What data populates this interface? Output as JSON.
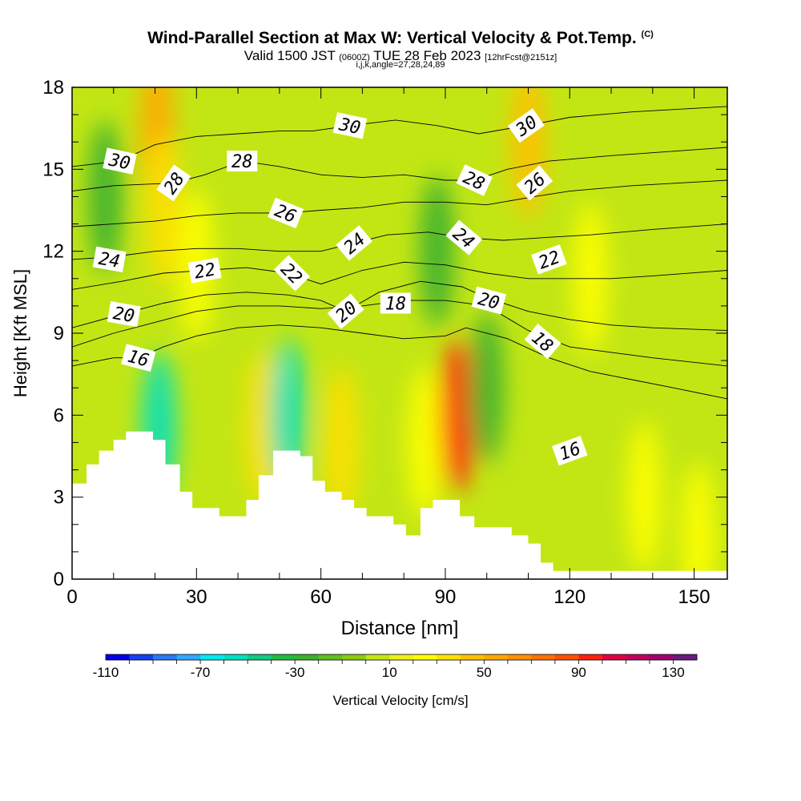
{
  "title": {
    "main": "Wind-Parallel Section at Max W: Vertical Velocity & Pot.Temp.",
    "copyright": "(C)",
    "valid_prefix": "Valid 1500 JST",
    "valid_zulu": "(0600Z)",
    "valid_date": "TUE 28 Feb 2023",
    "forecast": "[12hrFcst@2151z]",
    "indices": "i,j,k,angle=27,28,24,89"
  },
  "chart_data": {
    "type": "heatmap",
    "xlabel": "Distance [nm]",
    "ylabel": "Height [Kft MSL]",
    "x_ticks": [
      0,
      30,
      60,
      90,
      120,
      150
    ],
    "y_ticks": [
      0,
      3,
      6,
      9,
      12,
      15,
      18
    ],
    "xlim": [
      0,
      158
    ],
    "ylim": [
      0,
      18
    ],
    "grid": false,
    "terrain_kft": [
      [
        0,
        3.5
      ],
      [
        3.5,
        4.2
      ],
      [
        6.5,
        4.7
      ],
      [
        10,
        5.1
      ],
      [
        13,
        5.4
      ],
      [
        19.5,
        5.1
      ],
      [
        22.5,
        4.2
      ],
      [
        26,
        3.2
      ],
      [
        29,
        2.6
      ],
      [
        35.5,
        2.3
      ],
      [
        42,
        2.9
      ],
      [
        45,
        3.8
      ],
      [
        48.5,
        4.7
      ],
      [
        55,
        4.5
      ],
      [
        58,
        3.6
      ],
      [
        61,
        3.2
      ],
      [
        65,
        2.9
      ],
      [
        68,
        2.6
      ],
      [
        71,
        2.3
      ],
      [
        77.5,
        2.0
      ],
      [
        80.5,
        1.6
      ],
      [
        84,
        2.6
      ],
      [
        87,
        2.9
      ],
      [
        93.5,
        2.3
      ],
      [
        97,
        1.9
      ],
      [
        106,
        1.6
      ],
      [
        110,
        1.3
      ],
      [
        113,
        0.6
      ],
      [
        116,
        0.3
      ],
      [
        118,
        0.3
      ],
      [
        158,
        0.3
      ]
    ],
    "colorbar": {
      "label": "Vertical Velocity [cm/s]",
      "tick_labels": [
        "-110",
        "-70",
        "-30",
        "10",
        "50",
        "90",
        "130"
      ],
      "levels": [
        -110,
        -100,
        -90,
        -80,
        -70,
        -60,
        -50,
        -40,
        -30,
        -20,
        -10,
        0,
        10,
        20,
        30,
        40,
        50,
        60,
        70,
        80,
        90,
        100,
        110,
        120,
        130,
        140
      ],
      "colors": [
        "#0000e8",
        "#1440f0",
        "#2a78f4",
        "#30a8ff",
        "#00e8f0",
        "#00e0c0",
        "#10cc80",
        "#22bb40",
        "#3cb030",
        "#60c020",
        "#8ccc10",
        "#c2e614",
        "#eef018",
        "#ffff00",
        "#ffe000",
        "#ffc000",
        "#ffa800",
        "#ff9000",
        "#ff7000",
        "#ff5000",
        "#ff2010",
        "#e00040",
        "#c00060",
        "#a00070",
        "#6a1a80"
      ]
    },
    "velocity_features": [
      {
        "x": 20.5,
        "y": 16.5,
        "w_cm_s": 50
      },
      {
        "x": 22,
        "y": 13.5,
        "w_cm_s": 35
      },
      {
        "x": 30,
        "y": 11.5,
        "w_cm_s": 20
      },
      {
        "x": 46,
        "y": 5.5,
        "w_cm_s": 30
      },
      {
        "x": 52,
        "y": 6,
        "w_cm_s": -60
      },
      {
        "x": 65,
        "y": 5,
        "w_cm_s": 30
      },
      {
        "x": 85,
        "y": 5,
        "w_cm_s": 20
      },
      {
        "x": 93,
        "y": 6,
        "w_cm_s": 95
      },
      {
        "x": 110,
        "y": 16,
        "w_cm_s": 40
      },
      {
        "x": 100,
        "y": 7,
        "w_cm_s": -30
      },
      {
        "x": 125,
        "y": 11,
        "w_cm_s": 20
      },
      {
        "x": 138,
        "y": 3,
        "w_cm_s": 20
      },
      {
        "x": 151,
        "y": 1.5,
        "w_cm_s": 20
      },
      {
        "x": 8,
        "y": 14,
        "w_cm_s": -30
      },
      {
        "x": 21,
        "y": 5.5,
        "w_cm_s": -60
      },
      {
        "x": 88,
        "y": 12,
        "w_cm_s": -30
      }
    ],
    "contour_labels": [
      {
        "text": "30",
        "x": 11.5,
        "y": 15.3,
        "rot": 12
      },
      {
        "text": "28",
        "x": 24.5,
        "y": 14.5,
        "rot": -55
      },
      {
        "text": "28",
        "x": 41,
        "y": 15.3,
        "rot": 0
      },
      {
        "text": "30",
        "x": 67,
        "y": 16.6,
        "rot": 12
      },
      {
        "text": "26",
        "x": 51.5,
        "y": 13.4,
        "rot": 22
      },
      {
        "text": "24",
        "x": 9,
        "y": 11.7,
        "rot": 10
      },
      {
        "text": "22",
        "x": 32,
        "y": 11.3,
        "rot": -10
      },
      {
        "text": "22",
        "x": 53,
        "y": 11.2,
        "rot": 45
      },
      {
        "text": "24",
        "x": 68,
        "y": 12.3,
        "rot": -40
      },
      {
        "text": "20",
        "x": 12.5,
        "y": 9.7,
        "rot": 10
      },
      {
        "text": "20",
        "x": 66,
        "y": 9.8,
        "rot": -40
      },
      {
        "text": "18",
        "x": 78,
        "y": 10.1,
        "rot": 0
      },
      {
        "text": "16",
        "x": 16,
        "y": 8.1,
        "rot": 15
      },
      {
        "text": "28",
        "x": 97,
        "y": 14.6,
        "rot": 25
      },
      {
        "text": "30",
        "x": 109.5,
        "y": 16.6,
        "rot": -35
      },
      {
        "text": "26",
        "x": 111.5,
        "y": 14.5,
        "rot": -40
      },
      {
        "text": "24",
        "x": 94.5,
        "y": 12.5,
        "rot": 40
      },
      {
        "text": "22",
        "x": 115,
        "y": 11.7,
        "rot": -20
      },
      {
        "text": "20",
        "x": 100.5,
        "y": 10.2,
        "rot": 15
      },
      {
        "text": "18",
        "x": 113.5,
        "y": 8.7,
        "rot": 40
      },
      {
        "text": "16",
        "x": 120,
        "y": 4.7,
        "rot": -20
      }
    ],
    "isentropes": [
      {
        "theta": 16,
        "points": [
          [
            0,
            7.8
          ],
          [
            10,
            8.1
          ],
          [
            16,
            8.1
          ],
          [
            22,
            8.5
          ],
          [
            30,
            8.9
          ],
          [
            40,
            9.2
          ],
          [
            50,
            9.3
          ],
          [
            60,
            9.2
          ],
          [
            70,
            9.0
          ],
          [
            80,
            8.8
          ],
          [
            90,
            8.9
          ],
          [
            95,
            9.2
          ],
          [
            105,
            8.8
          ],
          [
            115,
            8.1
          ],
          [
            125,
            7.6
          ],
          [
            135,
            7.3
          ],
          [
            145,
            7.0
          ],
          [
            158,
            6.6
          ]
        ]
      },
      {
        "theta": 18,
        "points": [
          [
            0,
            8.5
          ],
          [
            10,
            9.0
          ],
          [
            20,
            9.4
          ],
          [
            30,
            9.8
          ],
          [
            40,
            10.0
          ],
          [
            50,
            10.0
          ],
          [
            60,
            9.9
          ],
          [
            70,
            10.0
          ],
          [
            80,
            10.2
          ],
          [
            90,
            10.2
          ],
          [
            100,
            10.0
          ],
          [
            110,
            9.1
          ],
          [
            120,
            8.5
          ],
          [
            130,
            8.3
          ],
          [
            140,
            8.1
          ],
          [
            158,
            7.8
          ]
        ]
      },
      {
        "theta": 20,
        "points": [
          [
            0,
            9.2
          ],
          [
            12,
            9.7
          ],
          [
            22,
            10.1
          ],
          [
            32,
            10.4
          ],
          [
            42,
            10.5
          ],
          [
            52,
            10.4
          ],
          [
            60,
            10.2
          ],
          [
            66,
            9.8
          ],
          [
            74,
            10.5
          ],
          [
            84,
            10.9
          ],
          [
            94,
            10.7
          ],
          [
            100,
            10.3
          ],
          [
            110,
            9.8
          ],
          [
            120,
            9.5
          ],
          [
            130,
            9.3
          ],
          [
            140,
            9.2
          ],
          [
            158,
            9.1
          ]
        ]
      },
      {
        "theta": 22,
        "points": [
          [
            0,
            10.6
          ],
          [
            12,
            10.9
          ],
          [
            22,
            11.2
          ],
          [
            32,
            11.3
          ],
          [
            42,
            11.4
          ],
          [
            52,
            11.2
          ],
          [
            60,
            10.8
          ],
          [
            70,
            11.3
          ],
          [
            80,
            11.6
          ],
          [
            90,
            11.5
          ],
          [
            100,
            11.2
          ],
          [
            110,
            11.0
          ],
          [
            120,
            11.0
          ],
          [
            130,
            11.0
          ],
          [
            140,
            11.1
          ],
          [
            158,
            11.3
          ]
        ]
      },
      {
        "theta": 24,
        "points": [
          [
            0,
            11.7
          ],
          [
            10,
            11.8
          ],
          [
            20,
            12.0
          ],
          [
            30,
            12.1
          ],
          [
            40,
            12.1
          ],
          [
            50,
            12.0
          ],
          [
            60,
            12.0
          ],
          [
            68,
            12.3
          ],
          [
            76,
            12.6
          ],
          [
            86,
            12.7
          ],
          [
            94,
            12.5
          ],
          [
            104,
            12.4
          ],
          [
            114,
            12.5
          ],
          [
            125,
            12.6
          ],
          [
            140,
            12.8
          ],
          [
            158,
            13.0
          ]
        ]
      },
      {
        "theta": 26,
        "points": [
          [
            0,
            12.9
          ],
          [
            10,
            13.0
          ],
          [
            20,
            13.1
          ],
          [
            30,
            13.3
          ],
          [
            40,
            13.4
          ],
          [
            51.5,
            13.4
          ],
          [
            60,
            13.5
          ],
          [
            70,
            13.6
          ],
          [
            80,
            13.8
          ],
          [
            90,
            13.8
          ],
          [
            100,
            13.7
          ],
          [
            111.5,
            14.0
          ],
          [
            120,
            14.2
          ],
          [
            135,
            14.4
          ],
          [
            158,
            14.6
          ]
        ]
      },
      {
        "theta": 28,
        "points": [
          [
            0,
            14.2
          ],
          [
            10,
            14.4
          ],
          [
            24.5,
            14.5
          ],
          [
            32,
            14.8
          ],
          [
            41,
            15.3
          ],
          [
            50,
            15.1
          ],
          [
            60,
            14.8
          ],
          [
            70,
            14.7
          ],
          [
            80,
            14.8
          ],
          [
            90,
            14.6
          ],
          [
            97,
            14.6
          ],
          [
            105,
            15.0
          ],
          [
            115,
            15.3
          ],
          [
            130,
            15.5
          ],
          [
            158,
            15.8
          ]
        ]
      },
      {
        "theta": 30,
        "points": [
          [
            0,
            15.1
          ],
          [
            11.5,
            15.3
          ],
          [
            20,
            15.9
          ],
          [
            30,
            16.2
          ],
          [
            40,
            16.3
          ],
          [
            50,
            16.4
          ],
          [
            58,
            16.4
          ],
          [
            67,
            16.6
          ],
          [
            78,
            16.8
          ],
          [
            88,
            16.6
          ],
          [
            98,
            16.3
          ],
          [
            109.5,
            16.6
          ],
          [
            120,
            16.9
          ],
          [
            135,
            17.1
          ],
          [
            158,
            17.3
          ]
        ]
      }
    ]
  },
  "colors": {
    "terrain": "#ffffff",
    "contour": "#000000",
    "label_box": "#ffffff"
  }
}
